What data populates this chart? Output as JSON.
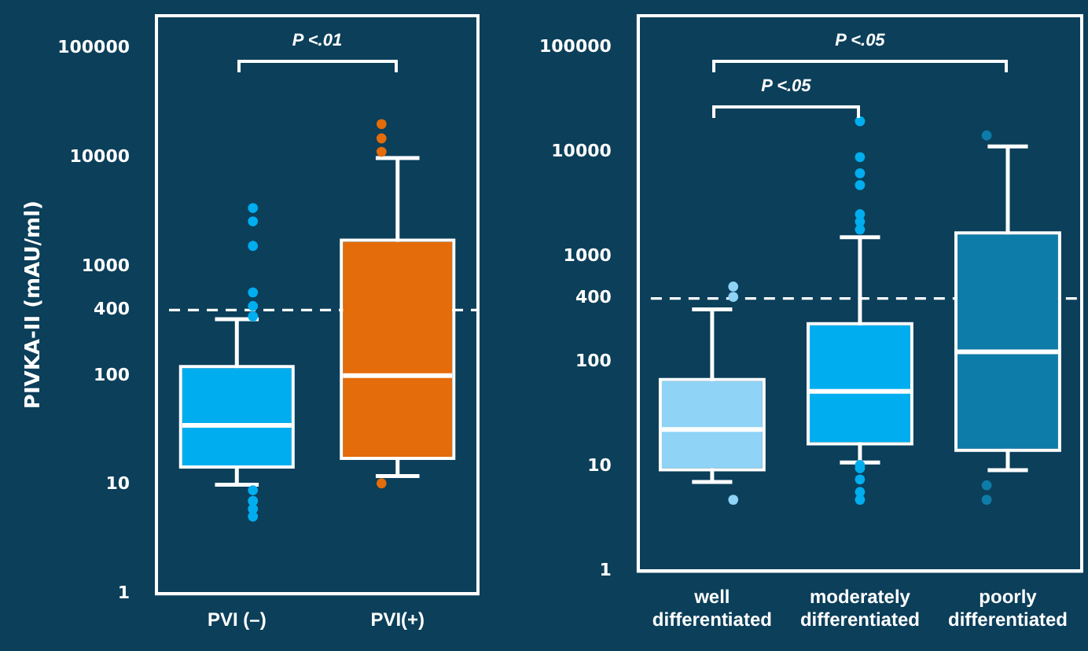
{
  "chart_data": [
    {
      "type": "box",
      "ylabel": "PIVKA-II (mAU/ml)",
      "categories": [
        "PVI (–)",
        "PVI(+)"
      ],
      "colors": [
        "#00aeef",
        "#e46c0a"
      ],
      "log": "y",
      "ylim": [
        1,
        200000
      ],
      "yticks": [
        1,
        10,
        100,
        400,
        1000,
        10000,
        100000
      ],
      "grid": false,
      "legend": false,
      "ref_lines": [
        {
          "axis": "y",
          "value": 400,
          "line_style": "dashed",
          "color": "#ffffff"
        }
      ],
      "annotations": [
        "P <.01"
      ],
      "boxes": [
        {
          "low": 10,
          "q1": 15,
          "median": 35,
          "q3": 117,
          "high": 330,
          "outliers": [
            3450,
            2600,
            1550,
            580,
            435,
            350,
            8.9,
            7.1,
            6,
            5.1
          ]
        },
        {
          "low": 12,
          "q1": 18,
          "median": 100,
          "q3": 1690,
          "high": 9900,
          "outliers": [
            20300,
            15000,
            11300,
            10.3
          ]
        }
      ]
    },
    {
      "type": "box",
      "categories": [
        "well differentiated",
        "moderately differentiated",
        "poorly differentiated"
      ],
      "colors": [
        "#8fd3f7",
        "#00aeef",
        "#0e7ca8"
      ],
      "log": "y",
      "ylim": [
        1,
        200000
      ],
      "yticks": [
        1,
        10,
        100,
        400,
        1000,
        10000,
        100000
      ],
      "grid": false,
      "legend": false,
      "ref_lines": [
        {
          "axis": "y",
          "value": 400,
          "line_style": "dashed",
          "color": "#ffffff"
        }
      ],
      "annotations": [
        "P <.05",
        "P <.05"
      ],
      "boxes": [
        {
          "low": 7.1,
          "q1": 9.6,
          "median": 22.5,
          "q3": 65,
          "high": 315,
          "outliers": [
            520,
            415,
            4.8
          ]
        },
        {
          "low": 10.9,
          "q1": 17,
          "median": 52,
          "q3": 222,
          "high": 1540,
          "outliers": [
            19700,
            8950,
            6270,
            4840,
            2550,
            2160,
            1820,
            10.3,
            9.6,
            7.5,
            5.7,
            4.8
          ]
        },
        {
          "low": 9.2,
          "q1": 14.7,
          "median": 124,
          "q3": 1630,
          "high": 11300,
          "outliers": [
            14400,
            6.6,
            4.8
          ]
        }
      ]
    }
  ]
}
